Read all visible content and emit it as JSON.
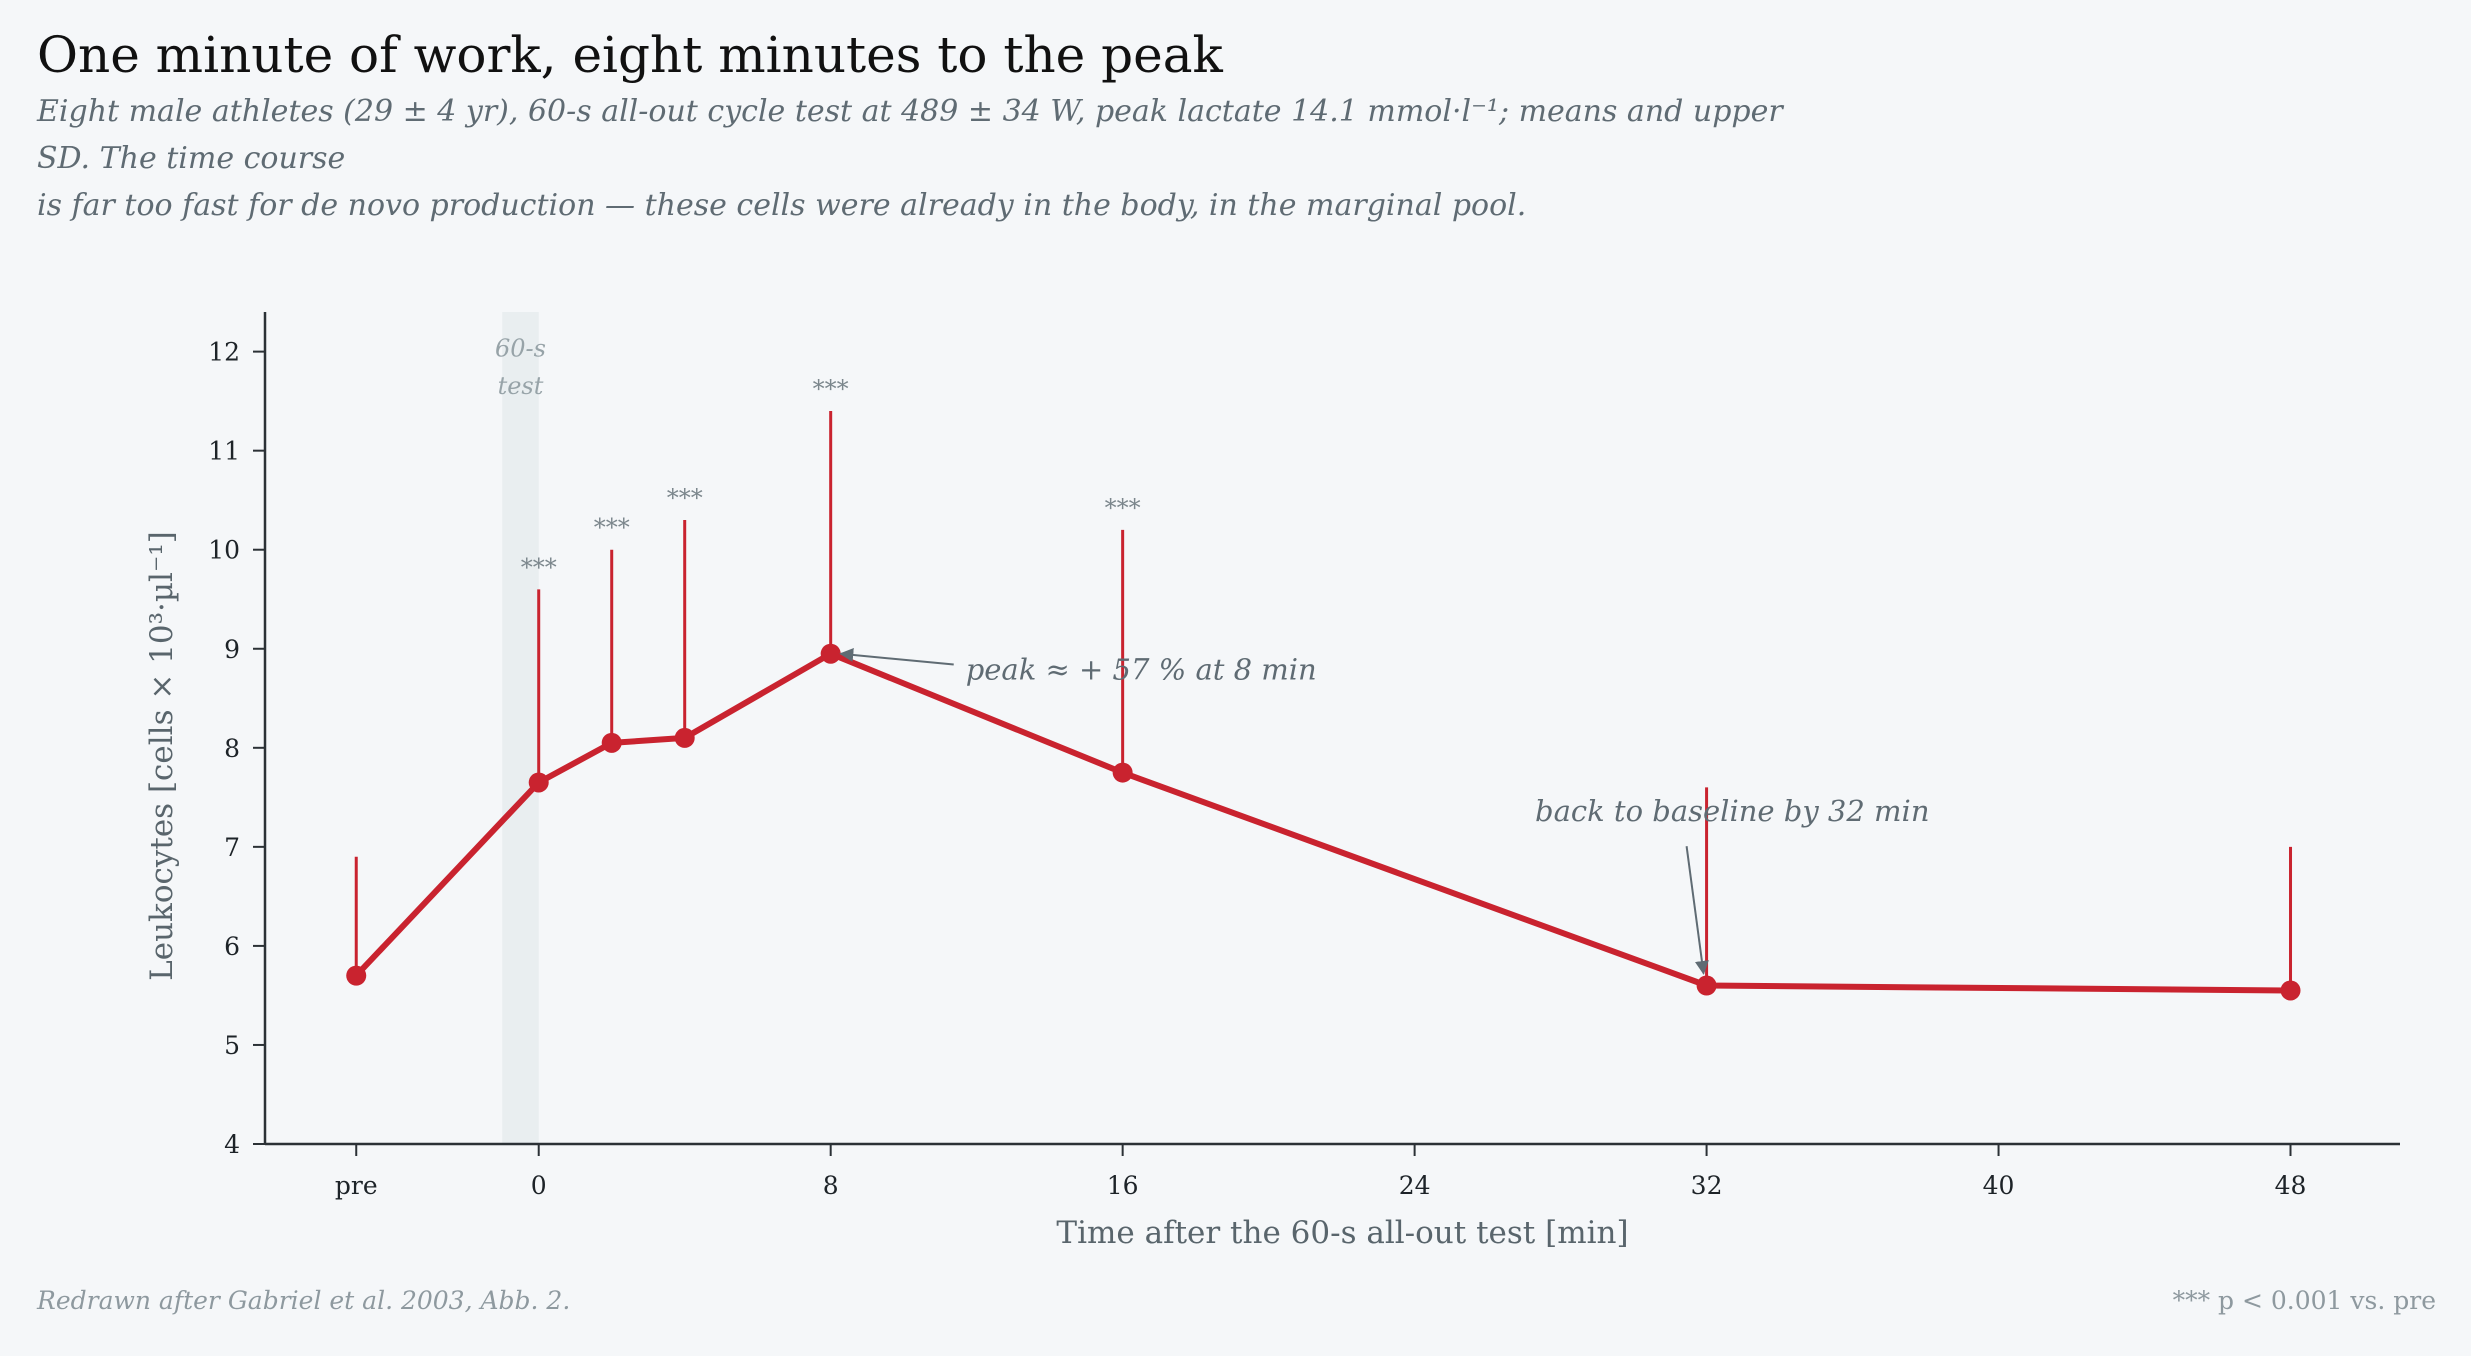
{
  "header": {
    "title": "One minute of work, eight minutes to the peak",
    "subtitle_line1": "Eight male athletes (29 ± 4 yr), 60-s all-out cycle test at 489 ± 34 W, peak lactate 14.1 mmol·l⁻¹; means and upper SD. The time course",
    "subtitle_line2": "is far too fast for de novo production — these cells were already in the body, in the marginal pool."
  },
  "footer": {
    "source": "Redrawn after Gabriel et al. 2003, Abb. 2.",
    "significance_note": "*** p < 0.001 vs. pre"
  },
  "chart_data": {
    "type": "line",
    "xlabel": "Time after the 60-s all-out test  [min]",
    "ylabel": "Leukocytes  [cells × 10³·µl⁻¹]",
    "xlim": [
      -7.5,
      51
    ],
    "ylim": [
      4,
      12.4
    ],
    "x_ticks": [
      {
        "x": -5,
        "label": "pre"
      },
      {
        "x": 0,
        "label": "0"
      },
      {
        "x": 8,
        "label": "8"
      },
      {
        "x": 16,
        "label": "16"
      },
      {
        "x": 24,
        "label": "24"
      },
      {
        "x": 32,
        "label": "32"
      },
      {
        "x": 40,
        "label": "40"
      },
      {
        "x": 48,
        "label": "48"
      }
    ],
    "y_ticks": [
      4,
      5,
      6,
      7,
      8,
      9,
      10,
      11,
      12
    ],
    "grid": false,
    "series_color": "#c9232f",
    "test_band": {
      "x0": -1,
      "x1": 0,
      "label_line1": "60-s",
      "label_line2": "test",
      "color": "#e9eef0"
    },
    "points": [
      {
        "x": -5,
        "y": 5.7,
        "sd_upper": 6.9,
        "sig": ""
      },
      {
        "x": 0,
        "y": 7.65,
        "sd_upper": 9.6,
        "sig": "***"
      },
      {
        "x": 2,
        "y": 8.05,
        "sd_upper": 10.0,
        "sig": "***"
      },
      {
        "x": 4,
        "y": 8.1,
        "sd_upper": 10.3,
        "sig": "***"
      },
      {
        "x": 8,
        "y": 8.95,
        "sd_upper": 11.4,
        "sig": "***"
      },
      {
        "x": 16,
        "y": 7.75,
        "sd_upper": 10.2,
        "sig": "***"
      },
      {
        "x": 32,
        "y": 5.6,
        "sd_upper": 7.6,
        "sig": ""
      },
      {
        "x": 48,
        "y": 5.55,
        "sd_upper": 7.0,
        "sig": ""
      }
    ],
    "annotations": [
      {
        "text": "peak ≈ + 57 % at 8 min",
        "x": 8,
        "y": 8.95,
        "text_x": 11.7,
        "text_y": 8.78
      },
      {
        "text": "back to baseline by 32 min",
        "x": 32,
        "y": 5.6,
        "text_x": 27.3,
        "text_y": 7.35
      }
    ]
  }
}
